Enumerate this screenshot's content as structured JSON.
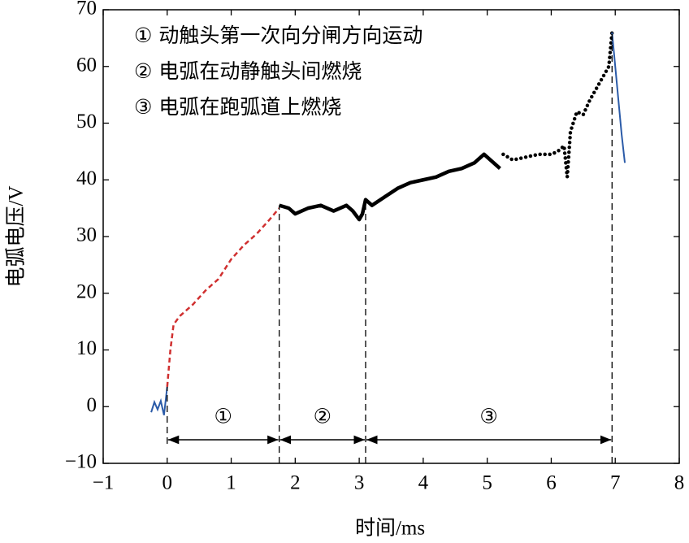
{
  "chart_data": {
    "type": "line",
    "x_label": "时间/ms",
    "y_label": "电弧电压/V",
    "xlim": [
      -1,
      8
    ],
    "ylim": [
      -10,
      70
    ],
    "xticks": [
      {
        "value": -1,
        "label": "−1"
      },
      0,
      1,
      2,
      3,
      4,
      5,
      6,
      7,
      8
    ],
    "yticks": [
      {
        "value": -10,
        "label": "−10"
      },
      0,
      10,
      20,
      30,
      40,
      50,
      60,
      70
    ],
    "series": [
      {
        "color": "#2b5ba8",
        "style": "solid",
        "x": [
          -0.25,
          -0.2,
          -0.15,
          -0.1,
          -0.05,
          0
        ],
        "values": [
          -1,
          0.8,
          -0.5,
          1,
          -1.5,
          3.5
        ]
      },
      {
        "color": "#d03030",
        "style": "dashed",
        "x": [
          0,
          0.05,
          0.1,
          0.2,
          0.4,
          0.6,
          0.8,
          1.0,
          1.2,
          1.4,
          1.6,
          1.75
        ],
        "values": [
          3.5,
          10,
          14.5,
          16,
          18,
          20.5,
          22.5,
          26,
          28.5,
          30.5,
          33,
          35
        ]
      },
      {
        "color": "#000000",
        "style": "thick",
        "x": [
          1.75,
          1.9,
          2.0,
          2.2,
          2.4,
          2.6,
          2.8,
          2.9,
          3.0,
          3.05,
          3.1,
          3.2,
          3.4,
          3.6,
          3.8,
          4.0,
          4.2,
          4.4,
          4.6,
          4.8,
          4.95,
          5.1,
          5.2
        ],
        "values": [
          35.5,
          35,
          34,
          35,
          35.5,
          34.5,
          35.5,
          34.5,
          33,
          34,
          36.5,
          35.5,
          37,
          38.5,
          39.5,
          40,
          40.5,
          41.5,
          42,
          43,
          44.5,
          43,
          42
        ]
      },
      {
        "color": "#000000",
        "style": "dotted",
        "x": [
          5.25,
          5.4,
          5.6,
          5.8,
          6.0,
          6.1,
          6.2,
          6.25,
          6.3,
          6.4,
          6.5,
          6.6,
          6.7,
          6.8,
          6.9,
          6.95
        ],
        "values": [
          44.5,
          43.5,
          44,
          44.5,
          44.5,
          45,
          46,
          40.5,
          48.5,
          52,
          51.5,
          54,
          56,
          58,
          60,
          66
        ]
      },
      {
        "color": "#2b5ba8",
        "style": "solid",
        "x": [
          6.95,
          7.0,
          7.05,
          7.1,
          7.15
        ],
        "values": [
          66,
          60,
          54,
          48,
          43
        ]
      }
    ],
    "notes": [
      "① 动触头第一次向分闸方向运动",
      "② 电弧在动静触头间燃烧",
      "③ 电弧在跑弧道上燃烧"
    ],
    "phases": [
      {
        "label": "①",
        "start": 0,
        "end": 1.75
      },
      {
        "label": "②",
        "start": 1.75,
        "end": 3.1
      },
      {
        "label": "③",
        "start": 3.1,
        "end": 6.95
      }
    ]
  }
}
